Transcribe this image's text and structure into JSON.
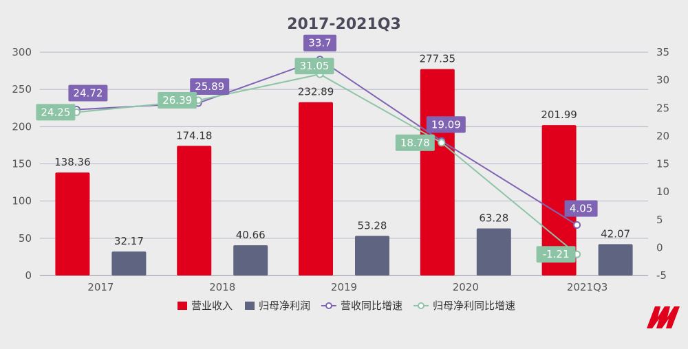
{
  "chart_data": {
    "type": "bar",
    "title": "2017-2021Q3",
    "categories": [
      "2017",
      "2018",
      "2019",
      "2020",
      "2021Q3"
    ],
    "y_left": {
      "min": 0,
      "max": 300,
      "ticks": [
        0,
        50,
        100,
        150,
        200,
        250,
        300
      ]
    },
    "y_right": {
      "min": -5,
      "max": 35,
      "ticks": [
        -5,
        0,
        5,
        10,
        15,
        20,
        25,
        30,
        35
      ]
    },
    "series": [
      {
        "name": "营业收入",
        "type": "bar",
        "axis": "left",
        "color": "#e0001b",
        "values": [
          138.36,
          174.18,
          232.89,
          277.35,
          201.99
        ],
        "labels": [
          "138.36",
          "174.18",
          "232.89",
          "277.35",
          "201.99"
        ]
      },
      {
        "name": "归母净利润",
        "type": "bar",
        "axis": "left",
        "color": "#5f6580",
        "values": [
          32.17,
          40.66,
          53.28,
          63.28,
          42.07
        ],
        "labels": [
          "32.17",
          "40.66",
          "53.28",
          "63.28",
          "42.07"
        ]
      },
      {
        "name": "营收同比增速",
        "type": "line",
        "axis": "right",
        "color": "#8064b4",
        "values": [
          24.72,
          25.89,
          33.7,
          19.09,
          4.05
        ],
        "labels": [
          "24.72",
          "25.89",
          "33.7",
          "19.09",
          "4.05"
        ]
      },
      {
        "name": "归母净利同比增速",
        "type": "line",
        "axis": "right",
        "color": "#8ec4a6",
        "values": [
          24.25,
          26.39,
          31.05,
          18.78,
          -1.21
        ],
        "labels": [
          "24.25",
          "26.39",
          "31.05",
          "18.78",
          "-1.21"
        ]
      }
    ],
    "grid": true,
    "legend_position": "bottom"
  }
}
